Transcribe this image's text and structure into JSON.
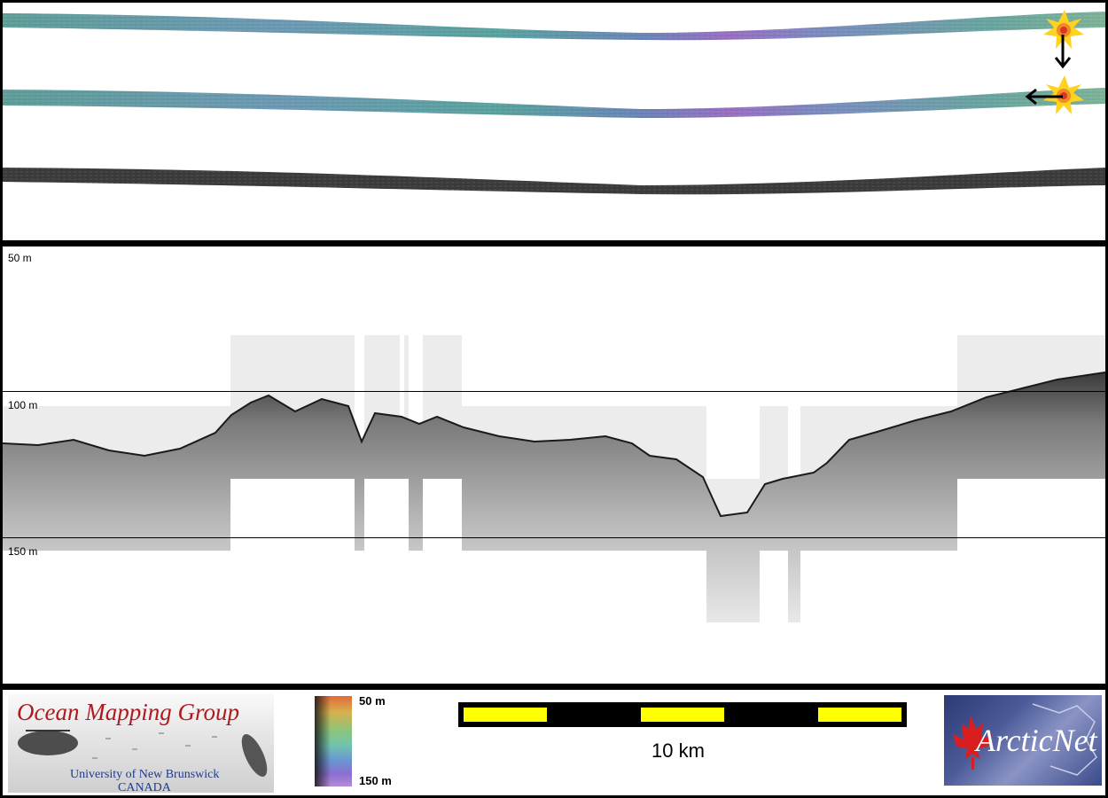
{
  "depth_axis": {
    "labels": [
      "50 m",
      "100 m",
      "150 m"
    ]
  },
  "legend": {
    "colorbar_top_label": "50 m",
    "colorbar_bottom_label": "150 m",
    "scale_label": "10 km"
  },
  "logos": {
    "omg_title": "Ocean Mapping Group",
    "omg_line1": "University of New Brunswick",
    "omg_line2": "CANADA",
    "arcticnet": "ArcticNet"
  },
  "icons": [
    "sun-marker-icon",
    "arrow-down-icon",
    "arrow-left-icon",
    "maple-leaf-icon",
    "ship-icon"
  ],
  "colors": {
    "frame": "#000000",
    "scale_yellow": "#ffff00",
    "omg_red": "#b0191e",
    "omg_blue": "#1f3a8c",
    "arcticnet_blue": "#2c3a73",
    "maple_red": "#d81e1e"
  }
}
